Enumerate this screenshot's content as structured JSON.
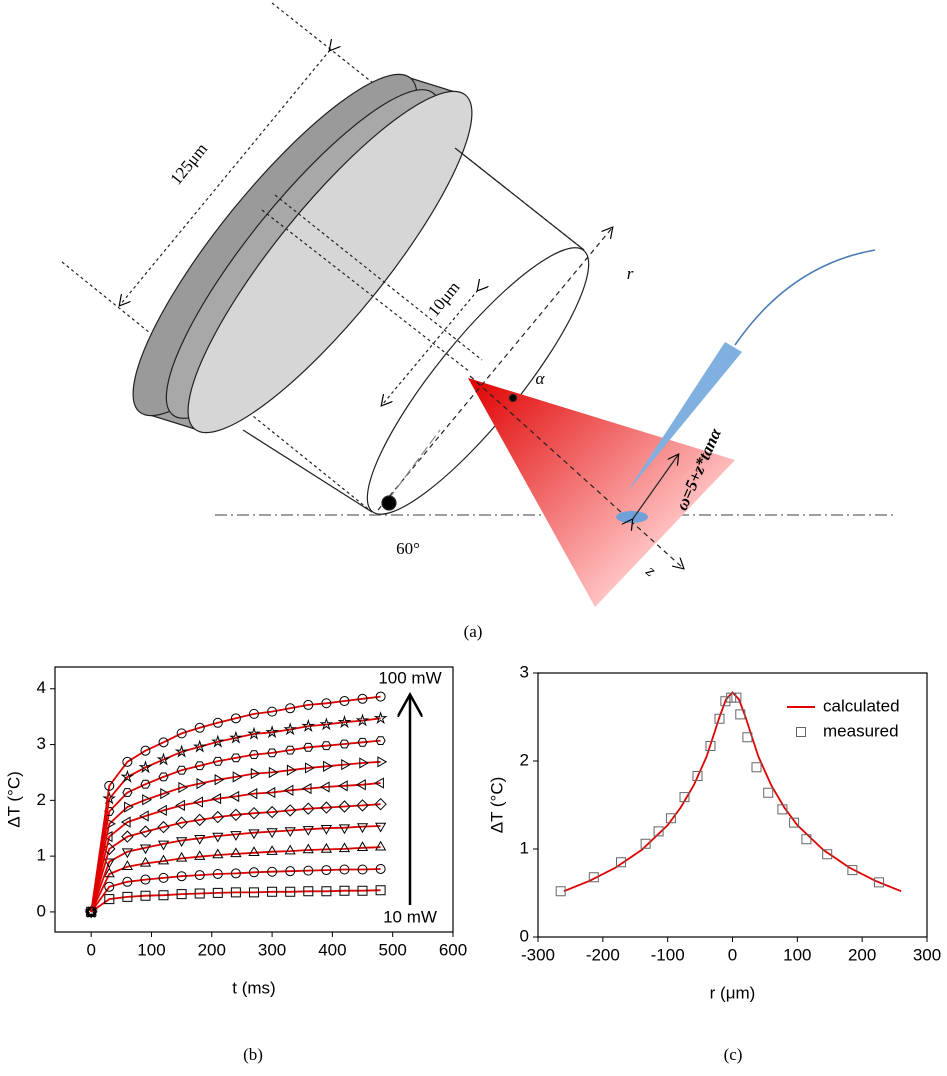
{
  "figure": {
    "labels": {
      "diameter": "125μm",
      "core": "10μm",
      "r_axis": "r",
      "angle": "α",
      "beam_width": "ω=5+z*tanα",
      "cleave": "60°",
      "z_axis": "z"
    },
    "captions": [
      "(a)",
      "(b)",
      "(c)"
    ]
  },
  "chart_data": [
    {
      "type": "line",
      "x_label": "t (ms)",
      "y_label": "ΔT (°C)",
      "xlim": [
        -60,
        600
      ],
      "xticks": [
        0,
        100,
        200,
        300,
        400,
        500,
        600
      ],
      "ylim": [
        -0.36,
        4.39
      ],
      "yticks": [
        0,
        1,
        2,
        3,
        4
      ],
      "annotations": [
        "100 mW",
        "10 mW"
      ],
      "x": [
        0,
        30,
        60,
        90,
        120,
        150,
        180,
        210,
        240,
        270,
        300,
        330,
        360,
        390,
        420,
        450,
        480
      ],
      "series": [
        {
          "marker": "square",
          "color": "#e00000",
          "marker_color": "#000000",
          "values": [
            0,
            0.23,
            0.27,
            0.29,
            0.3,
            0.32,
            0.33,
            0.34,
            0.35,
            0.35,
            0.36,
            0.36,
            0.37,
            0.37,
            0.38,
            0.38,
            0.39
          ]
        },
        {
          "marker": "circle",
          "color": "#e00000",
          "marker_color": "#000000",
          "values": [
            0,
            0.45,
            0.54,
            0.58,
            0.61,
            0.64,
            0.66,
            0.68,
            0.69,
            0.71,
            0.72,
            0.73,
            0.74,
            0.75,
            0.76,
            0.76,
            0.77
          ]
        },
        {
          "marker": "triangle-up",
          "color": "#e00000",
          "marker_color": "#000000",
          "values": [
            0,
            0.68,
            0.81,
            0.87,
            0.91,
            0.96,
            0.99,
            1.02,
            1.04,
            1.06,
            1.08,
            1.09,
            1.11,
            1.12,
            1.13,
            1.15,
            1.16
          ]
        },
        {
          "marker": "triangle-down",
          "color": "#e00000",
          "marker_color": "#000000",
          "values": [
            0,
            0.9,
            1.08,
            1.15,
            1.22,
            1.28,
            1.32,
            1.36,
            1.39,
            1.42,
            1.44,
            1.46,
            1.48,
            1.5,
            1.51,
            1.53,
            1.54
          ]
        },
        {
          "marker": "diamond",
          "color": "#e00000",
          "marker_color": "#000000",
          "values": [
            0,
            1.13,
            1.35,
            1.44,
            1.52,
            1.6,
            1.65,
            1.7,
            1.74,
            1.77,
            1.79,
            1.82,
            1.85,
            1.87,
            1.89,
            1.91,
            1.93
          ]
        },
        {
          "marker": "triangle-left",
          "color": "#e00000",
          "marker_color": "#000000",
          "values": [
            0,
            1.35,
            1.61,
            1.72,
            1.82,
            1.91,
            1.97,
            2.03,
            2.07,
            2.12,
            2.14,
            2.18,
            2.21,
            2.24,
            2.26,
            2.28,
            2.31
          ]
        },
        {
          "marker": "triangle-right",
          "color": "#e00000",
          "marker_color": "#000000",
          "values": [
            0,
            1.58,
            1.88,
            2.01,
            2.12,
            2.23,
            2.3,
            2.37,
            2.42,
            2.48,
            2.5,
            2.54,
            2.58,
            2.61,
            2.64,
            2.67,
            2.69
          ]
        },
        {
          "marker": "hexagon",
          "color": "#e00000",
          "marker_color": "#000000",
          "values": [
            0,
            1.8,
            2.14,
            2.29,
            2.42,
            2.54,
            2.62,
            2.7,
            2.76,
            2.82,
            2.85,
            2.9,
            2.95,
            2.98,
            3.01,
            3.04,
            3.07
          ]
        },
        {
          "marker": "star",
          "color": "#e00000",
          "marker_color": "#000000",
          "values": [
            0,
            2.03,
            2.42,
            2.59,
            2.73,
            2.87,
            2.96,
            3.05,
            3.12,
            3.19,
            3.22,
            3.27,
            3.33,
            3.36,
            3.4,
            3.43,
            3.47
          ]
        },
        {
          "marker": "circle",
          "color": "#e00000",
          "marker_color": "#000000",
          "values": [
            0,
            2.26,
            2.69,
            2.89,
            3.04,
            3.2,
            3.3,
            3.39,
            3.47,
            3.55,
            3.59,
            3.65,
            3.71,
            3.74,
            3.78,
            3.82,
            3.86
          ]
        }
      ]
    },
    {
      "type": "line",
      "x_label": "r (μm)",
      "y_label": "ΔT (°C)",
      "xlim": [
        -300,
        300
      ],
      "xticks": [
        -300,
        -200,
        -100,
        0,
        100,
        200,
        300
      ],
      "ylim": [
        0,
        3
      ],
      "yticks": [
        0,
        1,
        2,
        3
      ],
      "legend": "upper right",
      "series": [
        {
          "name": "calculated",
          "color": "#e00000",
          "x": [
            -260,
            -220,
            -180,
            -140,
            -100,
            -80,
            -60,
            -40,
            -20,
            -10,
            0,
            10,
            20,
            40,
            60,
            80,
            100,
            140,
            180,
            220,
            260
          ],
          "values": [
            0.52,
            0.64,
            0.79,
            0.99,
            1.27,
            1.47,
            1.72,
            2.05,
            2.5,
            2.7,
            2.78,
            2.7,
            2.5,
            2.05,
            1.72,
            1.47,
            1.27,
            0.99,
            0.79,
            0.64,
            0.52
          ]
        },
        {
          "name": "measured",
          "color": "#666666",
          "marker": "square",
          "x": [
            -265,
            -214,
            -172,
            -134,
            -114,
            -95,
            -74,
            -54,
            -34,
            -20,
            -11,
            -2,
            6,
            12,
            23,
            37,
            55,
            77,
            95,
            114,
            146,
            185,
            226
          ],
          "values": [
            0.52,
            0.68,
            0.85,
            1.06,
            1.2,
            1.35,
            1.59,
            1.83,
            2.17,
            2.48,
            2.68,
            2.72,
            2.72,
            2.53,
            2.27,
            1.93,
            1.64,
            1.45,
            1.3,
            1.11,
            0.94,
            0.76,
            0.62
          ]
        }
      ]
    }
  ]
}
